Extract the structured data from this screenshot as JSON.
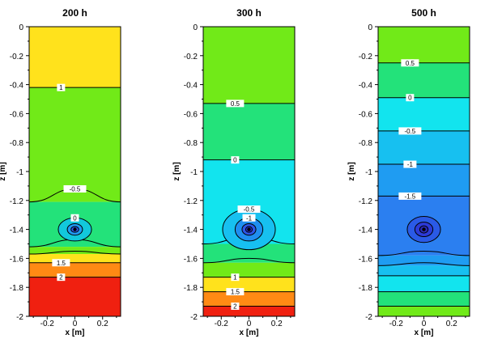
{
  "chart_data": [
    {
      "type": "heatmap",
      "title": "200 h",
      "xlabel": "x [m]",
      "ylabel": "z [m]",
      "xlim": [
        -0.33,
        0.33
      ],
      "ylim": [
        -2,
        0
      ],
      "x_ticks": [
        -0.2,
        0,
        0.2
      ],
      "y_ticks": [
        0,
        -0.2,
        -0.4,
        -0.6,
        -0.8,
        -1,
        -1.2,
        -1.4,
        -1.6,
        -1.8,
        -2
      ],
      "source": {
        "x": 0,
        "z": -1.4
      },
      "bands": [
        {
          "z_top": 0,
          "z_bottom": -0.42,
          "color": "#ffe21c"
        },
        {
          "z_top": -0.42,
          "z_bottom": -1.21,
          "color": "#71ea18"
        },
        {
          "z_top": -1.21,
          "z_bottom": -1.52,
          "color": "#23e27a"
        },
        {
          "z_top": -1.52,
          "z_bottom": -1.57,
          "color": "#71ea18"
        },
        {
          "z_top": -1.57,
          "z_bottom": -1.63,
          "color": "#ffe21c"
        },
        {
          "z_top": -1.63,
          "z_bottom": -1.73,
          "color": "#ff8a14"
        },
        {
          "z_top": -1.73,
          "z_bottom": -2,
          "color": "#f02010"
        }
      ],
      "contours": [
        {
          "z": -0.42,
          "label": "1"
        },
        {
          "z": -1.21,
          "label": "-0.5",
          "shape": "dome",
          "apex": -1.12
        },
        {
          "z": -1.52,
          "label": "",
          "shape": "sag",
          "apex": -1.47
        },
        {
          "z": -1.57,
          "label": "",
          "shape": "sag",
          "apex": -1.55
        },
        {
          "z": -1.63,
          "label": "1.5"
        },
        {
          "z": -1.73,
          "label": "2"
        }
      ],
      "eye": [
        {
          "rz": 0.08,
          "rx": 0.12,
          "label": "0",
          "fill": "#12c8dc"
        },
        {
          "rz": 0.04,
          "rx": 0.055,
          "label": "",
          "fill": "#1f9af2"
        },
        {
          "rz": 0.02,
          "rx": 0.028,
          "label": "",
          "fill": "#2f5ae8"
        }
      ]
    },
    {
      "type": "heatmap",
      "title": "300 h",
      "xlabel": "x [m]",
      "ylabel": "z [m]",
      "xlim": [
        -0.33,
        0.33
      ],
      "ylim": [
        -2,
        0
      ],
      "x_ticks": [
        -0.2,
        0,
        0.2
      ],
      "y_ticks": [
        0,
        -0.2,
        -0.4,
        -0.6,
        -0.8,
        -1,
        -1.2,
        -1.4,
        -1.6,
        -1.8,
        -2
      ],
      "source": {
        "x": 0,
        "z": -1.4
      },
      "bands": [
        {
          "z_top": 0,
          "z_bottom": -0.53,
          "color": "#71ea18"
        },
        {
          "z_top": -0.53,
          "z_bottom": -0.92,
          "color": "#23e27a"
        },
        {
          "z_top": -0.92,
          "z_bottom": -1.5,
          "color": "#12e4ee"
        },
        {
          "z_top": -1.5,
          "z_bottom": -1.63,
          "color": "#23e27a"
        },
        {
          "z_top": -1.63,
          "z_bottom": -1.73,
          "color": "#71ea18"
        },
        {
          "z_top": -1.73,
          "z_bottom": -1.83,
          "color": "#ffe21c"
        },
        {
          "z_top": -1.83,
          "z_bottom": -1.93,
          "color": "#ff8a14"
        },
        {
          "z_top": -1.93,
          "z_bottom": -2,
          "color": "#f02010"
        }
      ],
      "contours": [
        {
          "z": -0.53,
          "label": "0.5"
        },
        {
          "z": -0.92,
          "label": "0"
        },
        {
          "z": -1.5,
          "label": "",
          "shape": "sag",
          "apex": -1.45
        },
        {
          "z": -1.63,
          "label": "",
          "shape": "sag",
          "apex": -1.6
        },
        {
          "z": -1.73,
          "label": "1"
        },
        {
          "z": -1.83,
          "label": "1.5"
        },
        {
          "z": -1.93,
          "label": "2"
        }
      ],
      "eye": [
        {
          "rz": 0.14,
          "rx": 0.19,
          "label": "-0.5",
          "fill": "#17c0f0"
        },
        {
          "rz": 0.08,
          "rx": 0.1,
          "label": "-1",
          "fill": "#1f8ef0"
        },
        {
          "rz": 0.04,
          "rx": 0.05,
          "label": "",
          "fill": "#2c55e6"
        },
        {
          "rz": 0.02,
          "rx": 0.024,
          "label": "",
          "fill": "#2a30c8"
        }
      ]
    },
    {
      "type": "heatmap",
      "title": "500 h",
      "xlabel": "x [m]",
      "ylabel": "z [m]",
      "xlim": [
        -0.33,
        0.33
      ],
      "ylim": [
        -2,
        0
      ],
      "x_ticks": [
        -0.2,
        0,
        0.2
      ],
      "y_ticks": [
        0,
        -0.2,
        -0.4,
        -0.6,
        -0.8,
        -1,
        -1.2,
        -1.4,
        -1.6,
        -1.8,
        -2
      ],
      "source": {
        "x": 0,
        "z": -1.4
      },
      "bands": [
        {
          "z_top": 0,
          "z_bottom": -0.25,
          "color": "#71ea18"
        },
        {
          "z_top": -0.25,
          "z_bottom": -0.49,
          "color": "#23e27a"
        },
        {
          "z_top": -0.49,
          "z_bottom": -0.72,
          "color": "#12e4ee"
        },
        {
          "z_top": -0.72,
          "z_bottom": -0.95,
          "color": "#17c0f0"
        },
        {
          "z_top": -0.95,
          "z_bottom": -1.17,
          "color": "#1f9cf2"
        },
        {
          "z_top": -1.17,
          "z_bottom": -1.58,
          "color": "#2b7ff0"
        },
        {
          "z_top": -1.58,
          "z_bottom": -1.65,
          "color": "#1f9cf2"
        },
        {
          "z_top": -1.65,
          "z_bottom": -1.72,
          "color": "#17c0f0"
        },
        {
          "z_top": -1.72,
          "z_bottom": -1.83,
          "color": "#12e4ee"
        },
        {
          "z_top": -1.83,
          "z_bottom": -1.93,
          "color": "#23e27a"
        },
        {
          "z_top": -1.93,
          "z_bottom": -2,
          "color": "#71ea18"
        }
      ],
      "contours": [
        {
          "z": -0.25,
          "label": "0.5"
        },
        {
          "z": -0.49,
          "label": "0"
        },
        {
          "z": -0.72,
          "label": "-0.5"
        },
        {
          "z": -0.95,
          "label": "-1"
        },
        {
          "z": -1.17,
          "label": "-1.5"
        },
        {
          "z": -1.58,
          "label": "",
          "shape": "sag",
          "apex": -1.55
        },
        {
          "z": -1.65,
          "label": "",
          "shape": "sag",
          "apex": -1.63
        },
        {
          "z": -1.72,
          "label": ""
        },
        {
          "z": -1.83,
          "label": ""
        },
        {
          "z": -1.93,
          "label": ""
        }
      ],
      "eye": [
        {
          "rz": 0.09,
          "rx": 0.12,
          "label": "",
          "fill": "#2a5ae6"
        },
        {
          "rz": 0.05,
          "rx": 0.065,
          "label": "",
          "fill": "#2c3ad8"
        },
        {
          "rz": 0.025,
          "rx": 0.03,
          "label": "",
          "fill": "#2a2ab8"
        }
      ]
    }
  ]
}
